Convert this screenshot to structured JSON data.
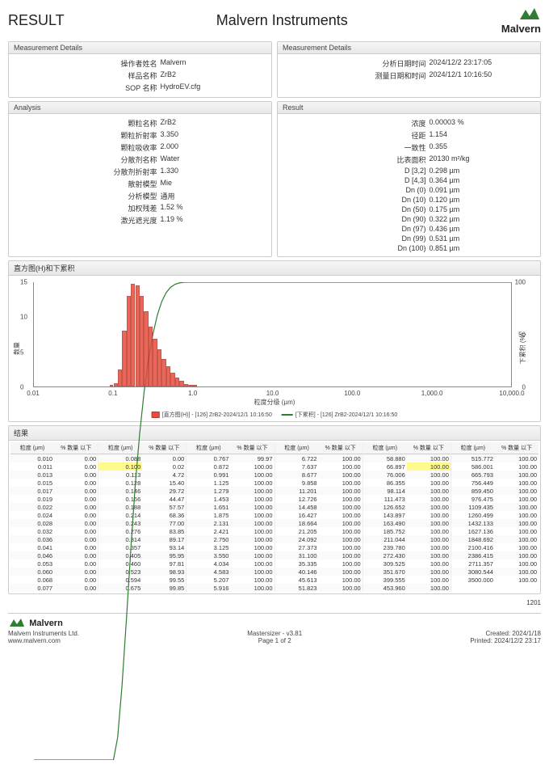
{
  "header": {
    "left": "RESULT",
    "center": "Malvern Instruments",
    "brand": "Malvern",
    "logo_color": "#2e7d32"
  },
  "panels": {
    "meas_left": {
      "title": "Measurement Details",
      "rows": [
        {
          "label": "操作者姓名",
          "value": "Malvern"
        },
        {
          "label": "样品名称",
          "value": "ZrB2"
        },
        {
          "label": "SOP 名称",
          "value": "HydroEV.cfg"
        }
      ]
    },
    "meas_right": {
      "title": "Measurement Details",
      "rows": [
        {
          "label": "分析日期时间",
          "value": "2024/12/2 23:17:05"
        },
        {
          "label": "测量日期和时间",
          "value": "2024/12/1 10:16:50"
        }
      ]
    },
    "analysis": {
      "title": "Analysis",
      "rows": [
        {
          "label": "颗粒名称",
          "value": "ZrB2"
        },
        {
          "label": "颗粒折射率",
          "value": "3.350"
        },
        {
          "label": "颗粒吸收率",
          "value": "2.000"
        },
        {
          "label": "分散剂名称",
          "value": "Water"
        },
        {
          "label": "分散剂折射率",
          "value": "1.330"
        },
        {
          "label": "散射模型",
          "value": "Mie"
        },
        {
          "label": "分析模型",
          "value": "通用"
        },
        {
          "label": "加权残差",
          "value": "1.52 %"
        },
        {
          "label": "激光遮光度",
          "value": "1.19 %"
        }
      ]
    },
    "result": {
      "title": "Result",
      "rows": [
        {
          "label": "浓度",
          "value": "0.00003 %"
        },
        {
          "label": "径距",
          "value": "1.154"
        },
        {
          "label": "一致性",
          "value": "0.355"
        },
        {
          "label": "比表面积",
          "value": "20130 m²/kg"
        },
        {
          "label": "D [3,2]",
          "value": "0.298 µm"
        },
        {
          "label": "D [4,3]",
          "value": "0.364 µm"
        },
        {
          "label": "Dn (0)",
          "value": "0.091 µm"
        },
        {
          "label": "Dn (10)",
          "value": "0.120 µm"
        },
        {
          "label": "Dn (50)",
          "value": "0.175 µm"
        },
        {
          "label": "Dn (90)",
          "value": "0.322 µm"
        },
        {
          "label": "Dn (97)",
          "value": "0.436 µm"
        },
        {
          "label": "Dn (99)",
          "value": "0.531 µm"
        },
        {
          "label": "Dn (100)",
          "value": "0.851 µm"
        }
      ]
    }
  },
  "chart": {
    "title": "直方图(H)和下累积",
    "type": "histogram+line",
    "x_label": "粒度分级 (µm)",
    "y_left_label": "数量",
    "y_right_label": "下累积 (%)",
    "x_scale": "log",
    "xlim": [
      0.01,
      10000
    ],
    "x_ticks": [
      0.01,
      0.1,
      1.0,
      10.0,
      100.0,
      1000.0,
      10000
    ],
    "x_tick_labels": [
      "0.01",
      "0.1",
      "1.0",
      "10.0",
      "100.0",
      "1,000.0",
      "10,000.0"
    ],
    "y_left_lim": [
      0,
      15
    ],
    "y_left_ticks": [
      0,
      5,
      10,
      15
    ],
    "y_right_lim": [
      0,
      100
    ],
    "y_right_ticks": [
      0,
      50,
      100
    ],
    "hist_color": "#e74c3c",
    "hist_border": "#c0392b",
    "line_color": "#2e7d32",
    "bg_color": "#ffffff",
    "bars_x": [
      0.09,
      0.1,
      0.113,
      0.128,
      0.146,
      0.166,
      0.188,
      0.214,
      0.243,
      0.276,
      0.314,
      0.357,
      0.405,
      0.46,
      0.523,
      0.594,
      0.675,
      0.767,
      0.872,
      0.991
    ],
    "bars_h": [
      0.1,
      0.5,
      2.5,
      8.0,
      13.0,
      14.8,
      14.5,
      13.0,
      10.8,
      8.6,
      6.9,
      5.3,
      4.0,
      2.9,
      2.0,
      1.3,
      0.8,
      0.4,
      0.15,
      0.03
    ],
    "cum_x": [
      0.01,
      0.08,
      0.1,
      0.113,
      0.128,
      0.146,
      0.166,
      0.188,
      0.214,
      0.243,
      0.276,
      0.314,
      0.357,
      0.405,
      0.46,
      0.523,
      0.594,
      0.675,
      0.767,
      0.872,
      1.0,
      10000
    ],
    "cum_y": [
      0,
      0,
      0.02,
      4.72,
      15.4,
      29.72,
      44.47,
      57.57,
      68.36,
      77.0,
      83.85,
      89.17,
      93.14,
      95.95,
      97.81,
      98.93,
      99.55,
      99.85,
      99.97,
      100,
      100,
      100
    ],
    "legend_hist": "[直方图(H)] - [126] ZrB2-2024/12/1 10:16:50",
    "legend_cum": "[下累积] - [126] ZrB2-2024/12/1 10:16:50"
  },
  "results_table": {
    "title": "结果",
    "head_size": "粒度 (µm)",
    "head_pct": "% 数量 以下",
    "groups": [
      [
        [
          "0.010",
          "0.00"
        ],
        [
          "0.011",
          "0.00"
        ],
        [
          "0.013",
          "0.00"
        ],
        [
          "0.015",
          "0.00"
        ],
        [
          "0.017",
          "0.00"
        ],
        [
          "0.019",
          "0.00"
        ],
        [
          "0.022",
          "0.00"
        ],
        [
          "0.024",
          "0.00"
        ],
        [
          "0.028",
          "0.00"
        ],
        [
          "0.032",
          "0.00"
        ],
        [
          "0.036",
          "0.00"
        ],
        [
          "0.041",
          "0.00"
        ],
        [
          "0.046",
          "0.00"
        ],
        [
          "0.053",
          "0.00"
        ],
        [
          "0.060",
          "0.00"
        ],
        [
          "0.068",
          "0.00"
        ],
        [
          "0.077",
          "0.00"
        ]
      ],
      [
        [
          "0.088",
          "0.00"
        ],
        [
          "0.100",
          "0.02"
        ],
        [
          "0.113",
          "4.72"
        ],
        [
          "0.128",
          "15.40"
        ],
        [
          "0.146",
          "29.72"
        ],
        [
          "0.166",
          "44.47"
        ],
        [
          "0.188",
          "57.57"
        ],
        [
          "0.214",
          "68.36"
        ],
        [
          "0.243",
          "77.00"
        ],
        [
          "0.276",
          "83.85"
        ],
        [
          "0.314",
          "89.17"
        ],
        [
          "0.357",
          "93.14"
        ],
        [
          "0.405",
          "95.95"
        ],
        [
          "0.460",
          "97.81"
        ],
        [
          "0.523",
          "98.93"
        ],
        [
          "0.594",
          "99.55"
        ],
        [
          "0.675",
          "99.85"
        ]
      ],
      [
        [
          "0.767",
          "99.97"
        ],
        [
          "0.872",
          "100.00"
        ],
        [
          "0.991",
          "100.00"
        ],
        [
          "1.125",
          "100.00"
        ],
        [
          "1.279",
          "100.00"
        ],
        [
          "1.453",
          "100.00"
        ],
        [
          "1.651",
          "100.00"
        ],
        [
          "1.875",
          "100.00"
        ],
        [
          "2.131",
          "100.00"
        ],
        [
          "2.421",
          "100.00"
        ],
        [
          "2.750",
          "100.00"
        ],
        [
          "3.125",
          "100.00"
        ],
        [
          "3.550",
          "100.00"
        ],
        [
          "4.034",
          "100.00"
        ],
        [
          "4.583",
          "100.00"
        ],
        [
          "5.207",
          "100.00"
        ],
        [
          "5.916",
          "100.00"
        ]
      ],
      [
        [
          "6.722",
          "100.00"
        ],
        [
          "7.637",
          "100.00"
        ],
        [
          "8.677",
          "100.00"
        ],
        [
          "9.858",
          "100.00"
        ],
        [
          "11.201",
          "100.00"
        ],
        [
          "12.726",
          "100.00"
        ],
        [
          "14.458",
          "100.00"
        ],
        [
          "16.427",
          "100.00"
        ],
        [
          "18.664",
          "100.00"
        ],
        [
          "21.205",
          "100.00"
        ],
        [
          "24.092",
          "100.00"
        ],
        [
          "27.373",
          "100.00"
        ],
        [
          "31.100",
          "100.00"
        ],
        [
          "35.335",
          "100.00"
        ],
        [
          "40.146",
          "100.00"
        ],
        [
          "45.613",
          "100.00"
        ],
        [
          "51.823",
          "100.00"
        ]
      ],
      [
        [
          "58.880",
          "100.00"
        ],
        [
          "66.897",
          "100.00"
        ],
        [
          "76.006",
          "100.00"
        ],
        [
          "86.355",
          "100.00"
        ],
        [
          "98.114",
          "100.00"
        ],
        [
          "111.473",
          "100.00"
        ],
        [
          "126.652",
          "100.00"
        ],
        [
          "143.897",
          "100.00"
        ],
        [
          "163.490",
          "100.00"
        ],
        [
          "185.752",
          "100.00"
        ],
        [
          "211.044",
          "100.00"
        ],
        [
          "239.780",
          "100.00"
        ],
        [
          "272.430",
          "100.00"
        ],
        [
          "309.525",
          "100.00"
        ],
        [
          "351.670",
          "100.00"
        ],
        [
          "399.555",
          "100.00"
        ],
        [
          "453.960",
          "100.00"
        ]
      ],
      [
        [
          "515.772",
          "100.00"
        ],
        [
          "586.001",
          "100.00"
        ],
        [
          "665.793",
          "100.00"
        ],
        [
          "756.449",
          "100.00"
        ],
        [
          "859.450",
          "100.00"
        ],
        [
          "976.475",
          "100.00"
        ],
        [
          "1109.435",
          "100.00"
        ],
        [
          "1260.499",
          "100.00"
        ],
        [
          "1432.133",
          "100.00"
        ],
        [
          "1627.136",
          "100.00"
        ],
        [
          "1848.692",
          "100.00"
        ],
        [
          "2100.416",
          "100.00"
        ],
        [
          "2386.415",
          "100.00"
        ],
        [
          "2711.357",
          "100.00"
        ],
        [
          "3080.544",
          "100.00"
        ],
        [
          "3500.000",
          "100.00"
        ]
      ]
    ]
  },
  "footer": {
    "page_id": "1201",
    "company": "Malvern Instruments Ltd.",
    "url": "www.malvern.com",
    "product": "Mastersizer - v3.81",
    "page": "Page 1 of 2",
    "created": "Created:  2024/1/18",
    "printed": "Printed: 2024/12/2 23:17"
  }
}
